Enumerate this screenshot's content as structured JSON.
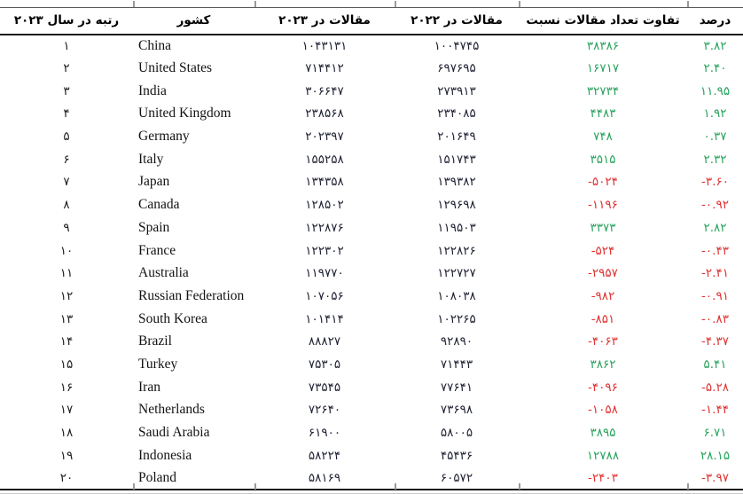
{
  "table": {
    "headers": {
      "rank": "رتبه در سال ۲۰۲۳",
      "country": "کشور",
      "articles_2023": "مقالات در ۲۰۲۳",
      "articles_2022": "مقالات در ۲۰۲۲",
      "difference": "تفاوت تعداد مقالات نسبت",
      "percent": "درصد"
    },
    "rows": [
      {
        "rank": "۱",
        "country": "China",
        "a2023": "۱۰۴۳۱۳۱",
        "a2022": "۱۰۰۴۷۴۵",
        "diff": "۳۸۳۸۶",
        "pct": "۳.۸۲",
        "trend": "pos"
      },
      {
        "rank": "۲",
        "country": "United States",
        "a2023": "۷۱۴۴۱۲",
        "a2022": "۶۹۷۶۹۵",
        "diff": "۱۶۷۱۷",
        "pct": "۲.۴۰",
        "trend": "pos"
      },
      {
        "rank": "۳",
        "country": "India",
        "a2023": "۳۰۶۶۴۷",
        "a2022": "۲۷۳۹۱۳",
        "diff": "۳۲۷۳۴",
        "pct": "۱۱.۹۵",
        "trend": "pos"
      },
      {
        "rank": "۴",
        "country": "United Kingdom",
        "a2023": "۲۳۸۵۶۸",
        "a2022": "۲۳۴۰۸۵",
        "diff": "۴۴۸۳",
        "pct": "۱.۹۲",
        "trend": "pos"
      },
      {
        "rank": "۵",
        "country": "Germany",
        "a2023": "۲۰۲۳۹۷",
        "a2022": "۲۰۱۶۴۹",
        "diff": "۷۴۸",
        "pct": "۰.۳۷",
        "trend": "pos"
      },
      {
        "rank": "۶",
        "country": "Italy",
        "a2023": "۱۵۵۲۵۸",
        "a2022": "۱۵۱۷۴۳",
        "diff": "۳۵۱۵",
        "pct": "۲.۳۲",
        "trend": "pos"
      },
      {
        "rank": "۷",
        "country": "Japan",
        "a2023": "۱۳۴۳۵۸",
        "a2022": "۱۳۹۳۸۲",
        "diff": "-۵۰۲۴",
        "pct": "-۳.۶۰",
        "trend": "neg"
      },
      {
        "rank": "۸",
        "country": "Canada",
        "a2023": "۱۲۸۵۰۲",
        "a2022": "۱۲۹۶۹۸",
        "diff": "-۱۱۹۶",
        "pct": "-۰.۹۲",
        "trend": "neg"
      },
      {
        "rank": "۹",
        "country": "Spain",
        "a2023": "۱۲۲۸۷۶",
        "a2022": "۱۱۹۵۰۳",
        "diff": "۳۳۷۳",
        "pct": "۲.۸۲",
        "trend": "pos"
      },
      {
        "rank": "۱۰",
        "country": "France",
        "a2023": "۱۲۲۳۰۲",
        "a2022": "۱۲۲۸۲۶",
        "diff": "-۵۲۴",
        "pct": "-۰.۴۳",
        "trend": "neg"
      },
      {
        "rank": "۱۱",
        "country": "Australia",
        "a2023": "۱۱۹۷۷۰",
        "a2022": "۱۲۲۷۲۷",
        "diff": "-۲۹۵۷",
        "pct": "-۲.۴۱",
        "trend": "neg"
      },
      {
        "rank": "۱۲",
        "country": "Russian Federation",
        "a2023": "۱۰۷۰۵۶",
        "a2022": "۱۰۸۰۳۸",
        "diff": "-۹۸۲",
        "pct": "-۰.۹۱",
        "trend": "neg"
      },
      {
        "rank": "۱۳",
        "country": "South Korea",
        "a2023": "۱۰۱۴۱۴",
        "a2022": "۱۰۲۲۶۵",
        "diff": "-۸۵۱",
        "pct": "-۰.۸۳",
        "trend": "neg"
      },
      {
        "rank": "۱۴",
        "country": "Brazil",
        "a2023": "۸۸۸۲۷",
        "a2022": "۹۲۸۹۰",
        "diff": "-۴۰۶۳",
        "pct": "-۴.۳۷",
        "trend": "neg"
      },
      {
        "rank": "۱۵",
        "country": "Turkey",
        "a2023": "۷۵۳۰۵",
        "a2022": "۷۱۴۴۳",
        "diff": "۳۸۶۲",
        "pct": "۵.۴۱",
        "trend": "pos"
      },
      {
        "rank": "۱۶",
        "country": "Iran",
        "a2023": "۷۳۵۴۵",
        "a2022": "۷۷۶۴۱",
        "diff": "-۴۰۹۶",
        "pct": "-۵.۲۸",
        "trend": "neg"
      },
      {
        "rank": "۱۷",
        "country": "Netherlands",
        "a2023": "۷۲۶۴۰",
        "a2022": "۷۳۶۹۸",
        "diff": "-۱۰۵۸",
        "pct": "-۱.۴۴",
        "trend": "neg"
      },
      {
        "rank": "۱۸",
        "country": "Saudi Arabia",
        "a2023": "۶۱۹۰۰",
        "a2022": "۵۸۰۰۵",
        "diff": "۳۸۹۵",
        "pct": "۶.۷۱",
        "trend": "pos"
      },
      {
        "rank": "۱۹",
        "country": "Indonesia",
        "a2023": "۵۸۲۲۴",
        "a2022": "۴۵۴۳۶",
        "diff": "۱۲۷۸۸",
        "pct": "۲۸.۱۵",
        "trend": "pos"
      },
      {
        "rank": "۲۰",
        "country": "Poland",
        "a2023": "۵۸۱۶۹",
        "a2022": "۶۰۵۷۲",
        "diff": "-۲۴۰۳",
        "pct": "-۳.۹۷",
        "trend": "neg"
      }
    ]
  },
  "colors": {
    "positive": "#29a35d",
    "negative": "#e03232",
    "body_number": "#1f2233",
    "header_text": "#000000"
  }
}
